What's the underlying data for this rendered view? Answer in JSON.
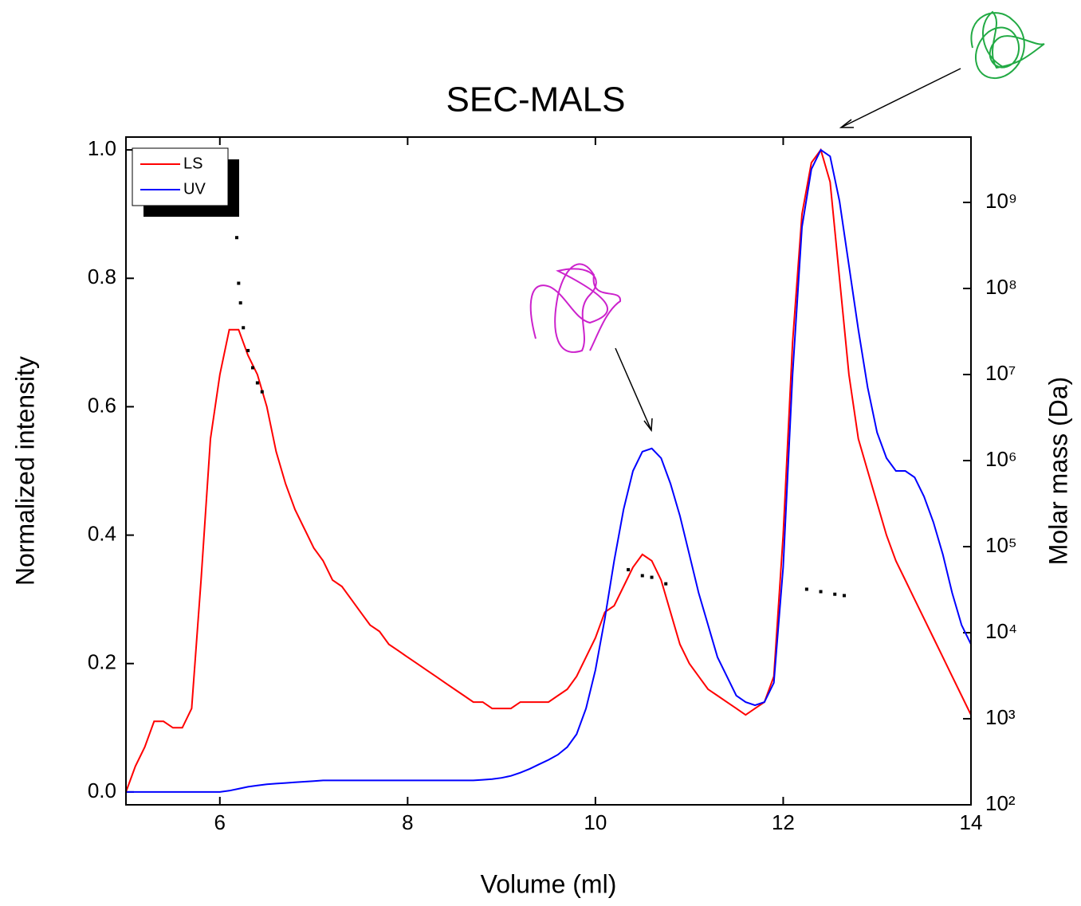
{
  "chart_data": {
    "type": "line",
    "title": "SEC-MALS",
    "x_label": "Volume (ml)",
    "y_label": "Normalized intensity",
    "y2_label": "Molar mass (Da)",
    "x": [
      5.0,
      5.1,
      5.2,
      5.3,
      5.4,
      5.5,
      5.6,
      5.7,
      5.8,
      5.9,
      6.0,
      6.1,
      6.2,
      6.3,
      6.4,
      6.5,
      6.6,
      6.7,
      6.8,
      6.9,
      7.0,
      7.1,
      7.2,
      7.3,
      7.4,
      7.5,
      7.6,
      7.7,
      7.8,
      7.9,
      8.0,
      8.1,
      8.2,
      8.3,
      8.4,
      8.5,
      8.6,
      8.7,
      8.8,
      8.9,
      9.0,
      9.1,
      9.2,
      9.3,
      9.4,
      9.5,
      9.6,
      9.7,
      9.8,
      9.9,
      10.0,
      10.1,
      10.2,
      10.3,
      10.4,
      10.5,
      10.6,
      10.7,
      10.8,
      10.9,
      11.0,
      11.1,
      11.2,
      11.3,
      11.4,
      11.5,
      11.6,
      11.7,
      11.8,
      11.9,
      12.0,
      12.1,
      12.2,
      12.3,
      12.4,
      12.5,
      12.6,
      12.7,
      12.8,
      12.9,
      13.0,
      13.1,
      13.2,
      13.3,
      13.4,
      13.5,
      13.6,
      13.7,
      13.8,
      13.9,
      14.0
    ],
    "series": [
      {
        "name": "LS",
        "color": "#ff0000",
        "values": [
          0.0,
          0.04,
          0.07,
          0.11,
          0.11,
          0.1,
          0.1,
          0.13,
          0.33,
          0.55,
          0.65,
          0.72,
          0.72,
          0.68,
          0.65,
          0.6,
          0.53,
          0.48,
          0.44,
          0.41,
          0.38,
          0.36,
          0.33,
          0.32,
          0.3,
          0.28,
          0.26,
          0.25,
          0.23,
          0.22,
          0.21,
          0.2,
          0.19,
          0.18,
          0.17,
          0.16,
          0.15,
          0.14,
          0.14,
          0.13,
          0.13,
          0.13,
          0.14,
          0.14,
          0.14,
          0.14,
          0.15,
          0.16,
          0.18,
          0.21,
          0.24,
          0.28,
          0.29,
          0.32,
          0.35,
          0.37,
          0.36,
          0.33,
          0.28,
          0.23,
          0.2,
          0.18,
          0.16,
          0.15,
          0.14,
          0.13,
          0.12,
          0.13,
          0.14,
          0.18,
          0.4,
          0.7,
          0.9,
          0.98,
          1.0,
          0.95,
          0.8,
          0.65,
          0.55,
          0.5,
          0.45,
          0.4,
          0.36,
          0.33,
          0.3,
          0.27,
          0.24,
          0.21,
          0.18,
          0.15,
          0.12
        ]
      },
      {
        "name": "UV",
        "color": "#0000ff",
        "values": [
          0,
          0,
          0,
          0,
          0,
          0,
          0,
          0,
          0,
          0,
          0,
          0.002,
          0.005,
          0.008,
          0.01,
          0.012,
          0.013,
          0.014,
          0.015,
          0.016,
          0.017,
          0.018,
          0.018,
          0.018,
          0.018,
          0.018,
          0.018,
          0.018,
          0.018,
          0.018,
          0.018,
          0.018,
          0.018,
          0.018,
          0.018,
          0.018,
          0.018,
          0.018,
          0.019,
          0.02,
          0.022,
          0.025,
          0.03,
          0.036,
          0.043,
          0.05,
          0.058,
          0.07,
          0.09,
          0.13,
          0.19,
          0.27,
          0.36,
          0.44,
          0.5,
          0.53,
          0.535,
          0.52,
          0.48,
          0.43,
          0.37,
          0.31,
          0.26,
          0.21,
          0.18,
          0.15,
          0.14,
          0.135,
          0.14,
          0.17,
          0.35,
          0.65,
          0.88,
          0.97,
          1.0,
          0.99,
          0.92,
          0.82,
          0.72,
          0.63,
          0.56,
          0.52,
          0.5,
          0.5,
          0.49,
          0.46,
          0.42,
          0.37,
          0.31,
          0.26,
          0.23
        ]
      }
    ],
    "molar_mass": {
      "axis": "y2",
      "color": "#000000",
      "x": [
        6.18,
        6.2,
        6.22,
        6.25,
        6.3,
        6.35,
        6.4,
        6.45,
        10.35,
        10.5,
        10.6,
        10.75,
        12.25,
        12.4,
        12.55,
        12.65
      ],
      "values": [
        390000000,
        115000000,
        68000000,
        35000000,
        19000000,
        12000000,
        8000000,
        6300000,
        54000,
        46000,
        44000,
        37000,
        32000,
        30000,
        28000,
        27000
      ]
    },
    "xlim": [
      5,
      14
    ],
    "xticks": [
      6,
      8,
      10,
      12,
      14
    ],
    "ylim": [
      -0.02,
      1.02
    ],
    "yticks": [
      {
        "value": 0,
        "label": "0.0"
      },
      0.2,
      0.4,
      0.6,
      0.8,
      {
        "value": 1,
        "label": "1.0"
      }
    ],
    "y2_log": true,
    "y2lim": [
      100,
      5750000000
    ],
    "y2ticks": [
      {
        "value": 100,
        "label": "10²"
      },
      {
        "value": 1000,
        "label": "10³"
      },
      {
        "value": 10000,
        "label": "10⁴"
      },
      {
        "value": 100000,
        "label": "10⁵"
      },
      {
        "value": 1000000,
        "label": "10⁶"
      },
      {
        "value": 10000000,
        "label": "10⁷"
      },
      {
        "value": 100000000,
        "label": "10⁸"
      },
      {
        "value": 1000000000,
        "label": "10⁹"
      }
    ],
    "legend": "upper left"
  }
}
